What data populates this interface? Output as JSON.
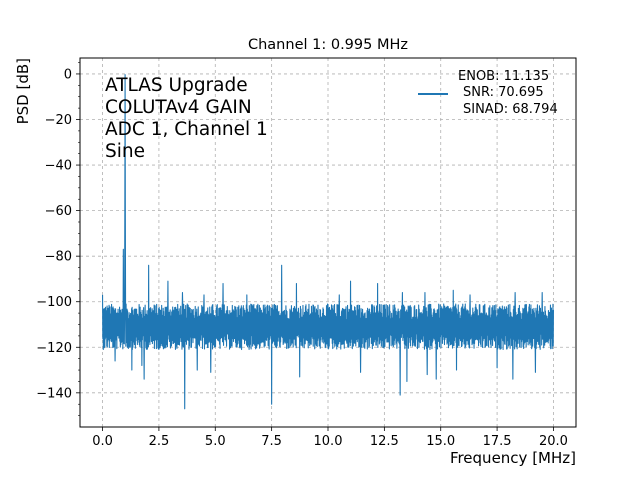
{
  "chart_data": {
    "type": "line",
    "title": "Channel 1: 0.995 MHz",
    "xlabel": "Frequency [MHz]",
    "ylabel": "PSD [dB]",
    "xlim": [
      -1.0,
      21.0
    ],
    "ylim": [
      -155,
      7
    ],
    "xticks": [
      0.0,
      2.5,
      5.0,
      7.5,
      10.0,
      12.5,
      15.0,
      17.5,
      20.0
    ],
    "xtick_labels": [
      "0.0",
      "2.5",
      "5.0",
      "7.5",
      "10.0",
      "12.5",
      "15.0",
      "17.5",
      "20.0"
    ],
    "yticks": [
      0,
      -20,
      -40,
      -60,
      -80,
      -100,
      -120,
      -140
    ],
    "ytick_labels": [
      "0",
      "−20",
      "−40",
      "−60",
      "−80",
      "−100",
      "−120",
      "−140"
    ],
    "grid": true,
    "grid_style": "dashed",
    "line_color": "#1f77b4",
    "annotation_lines": [
      "ATLAS Upgrade",
      "COLUTAv4 GAIN",
      "ADC 1, Channel 1",
      "Sine"
    ],
    "legend": {
      "placement": "top-right",
      "lines": [
        "ENOB: 11.135",
        "SNR: 70.695",
        "SINAD: 68.794"
      ]
    },
    "noise_floor_db": [
      -121,
      -101
    ],
    "noise_floor_center_db": -111,
    "fundamental": {
      "x": 0.995,
      "y": -0.3
    },
    "spurs": [
      {
        "x": 0.0,
        "y": -97
      },
      {
        "x": 0.92,
        "y": -77
      },
      {
        "x": 2.05,
        "y": -84
      },
      {
        "x": 2.9,
        "y": -91
      },
      {
        "x": 3.55,
        "y": -96
      },
      {
        "x": 4.5,
        "y": -97
      },
      {
        "x": 5.35,
        "y": -92
      },
      {
        "x": 6.4,
        "y": -97
      },
      {
        "x": 7.95,
        "y": -84
      },
      {
        "x": 8.6,
        "y": -92
      },
      {
        "x": 10.5,
        "y": -97
      },
      {
        "x": 11.0,
        "y": -91
      },
      {
        "x": 12.2,
        "y": -92
      },
      {
        "x": 13.3,
        "y": -96
      },
      {
        "x": 14.3,
        "y": -96
      },
      {
        "x": 15.55,
        "y": -95
      },
      {
        "x": 16.3,
        "y": -97
      },
      {
        "x": 18.3,
        "y": -96
      },
      {
        "x": 19.5,
        "y": -96
      }
    ],
    "dips": [
      {
        "x": 0.55,
        "y": -126
      },
      {
        "x": 1.3,
        "y": -130
      },
      {
        "x": 1.75,
        "y": -128
      },
      {
        "x": 1.85,
        "y": -134
      },
      {
        "x": 3.65,
        "y": -147
      },
      {
        "x": 4.2,
        "y": -130
      },
      {
        "x": 4.8,
        "y": -131
      },
      {
        "x": 7.5,
        "y": -145
      },
      {
        "x": 8.75,
        "y": -133
      },
      {
        "x": 11.45,
        "y": -131
      },
      {
        "x": 13.2,
        "y": -141
      },
      {
        "x": 13.5,
        "y": -135
      },
      {
        "x": 14.4,
        "y": -132
      },
      {
        "x": 14.8,
        "y": -134
      },
      {
        "x": 15.7,
        "y": -130
      },
      {
        "x": 17.5,
        "y": -129
      },
      {
        "x": 18.2,
        "y": -134
      },
      {
        "x": 19.2,
        "y": -131
      }
    ]
  }
}
